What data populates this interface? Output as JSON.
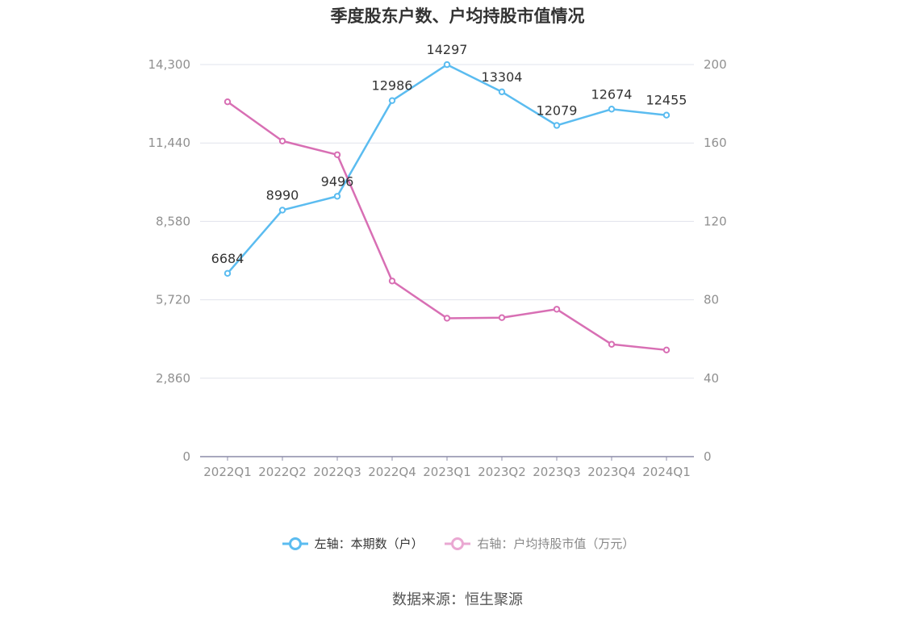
{
  "title": "季度股东户数、户均持股市值情况",
  "source": "数据来源：恒生聚源",
  "colors": {
    "left_series": "#5bbcf0",
    "right_series": "#d86fb4",
    "grid": "#e1e3ec",
    "axis_text": "#909090",
    "label_text": "#333333"
  },
  "chart_data": {
    "type": "line",
    "title": "季度股东户数、户均持股市值情况",
    "categories": [
      "2022Q1",
      "2022Q2",
      "2022Q3",
      "2022Q4",
      "2023Q1",
      "2023Q2",
      "2023Q3",
      "2023Q4",
      "2024Q1"
    ],
    "left_axis": {
      "ticks": [
        "0",
        "2,860",
        "5,720",
        "8,580",
        "11,440",
        "14,300"
      ],
      "range": [
        0,
        14300
      ]
    },
    "right_axis": {
      "ticks": [
        "0",
        "40",
        "80",
        "120",
        "160",
        "200"
      ],
      "range": [
        0,
        200
      ]
    },
    "series": [
      {
        "name": "左轴：本期数（户）",
        "axis": "left",
        "values": [
          6684,
          8990,
          9496,
          12986,
          14297,
          13304,
          12079,
          12674,
          12455
        ],
        "labels": [
          "6684",
          "8990",
          "9496",
          "12986",
          "14297",
          "13304",
          "12079",
          "12674",
          "12455"
        ]
      },
      {
        "name": "右轴：户均持股市值（万元）",
        "axis": "right",
        "values": [
          181,
          161,
          154,
          89.6,
          70.6,
          70.9,
          75.2,
          57.3,
          54.4
        ]
      }
    ],
    "grid": true,
    "legend_position": "bottom"
  }
}
